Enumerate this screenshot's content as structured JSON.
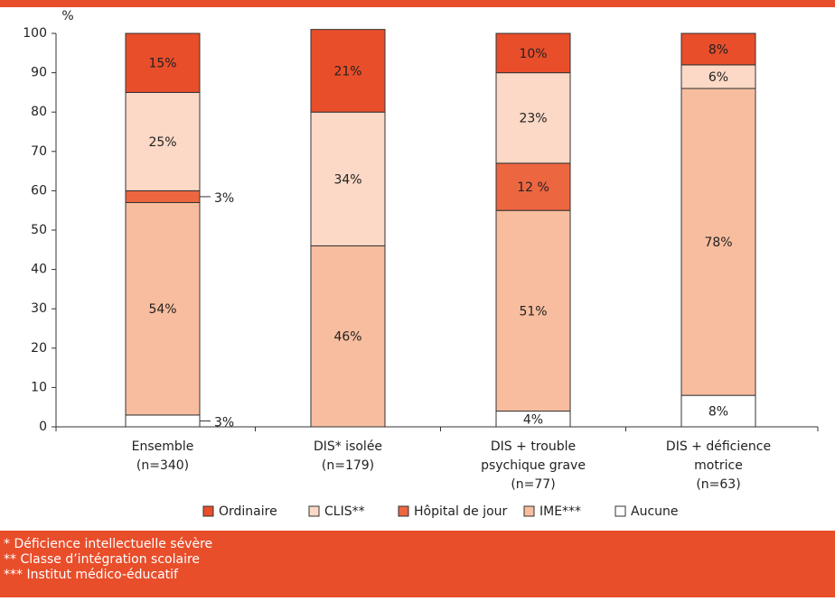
{
  "chart_data": {
    "type": "stacked-bar",
    "ylabel": "%",
    "categories": [
      [
        "Ensemble",
        "(n=340)"
      ],
      [
        "DIS* isolée",
        "(n=179)"
      ],
      [
        "DIS + trouble",
        "psychique grave",
        "(n=77)"
      ],
      [
        "DIS + déficience",
        "motrice",
        "(n=63)"
      ]
    ],
    "series": [
      {
        "name": "Ordinaire",
        "color": "#e94e2b",
        "values": [
          15,
          21,
          10,
          8
        ],
        "value_labels": [
          "15%",
          "21%",
          "10%",
          "8%"
        ]
      },
      {
        "name": "CLIS**",
        "color": "#fcd8c6",
        "values": [
          25,
          34,
          23,
          6
        ],
        "value_labels": [
          "25%",
          "34%",
          "23%",
          "6%"
        ]
      },
      {
        "name": "Hôpital de jour",
        "color": "#ec6640",
        "values": [
          3,
          null,
          12,
          null
        ],
        "value_labels": [
          "3%",
          null,
          "12 %",
          null
        ]
      },
      {
        "name": "IME***",
        "color": "#f8bd9f",
        "values": [
          54,
          46,
          51,
          78
        ],
        "value_labels": [
          "54%",
          "46%",
          "51%",
          "78%"
        ]
      },
      {
        "name": "Aucune",
        "color": "#ffffff",
        "values": [
          3,
          null,
          4,
          8
        ],
        "value_labels": [
          "3%",
          null,
          "4%",
          "8%"
        ]
      }
    ],
    "ylim": [
      0,
      100
    ],
    "yticks": [
      0,
      10,
      20,
      30,
      40,
      50,
      60,
      70,
      80,
      90,
      100
    ],
    "footnotes": [
      "* Déficience intellectuelle sévère",
      "** Classe d’intégration scolaire",
      "*** Institut médico-éducatif"
    ]
  }
}
